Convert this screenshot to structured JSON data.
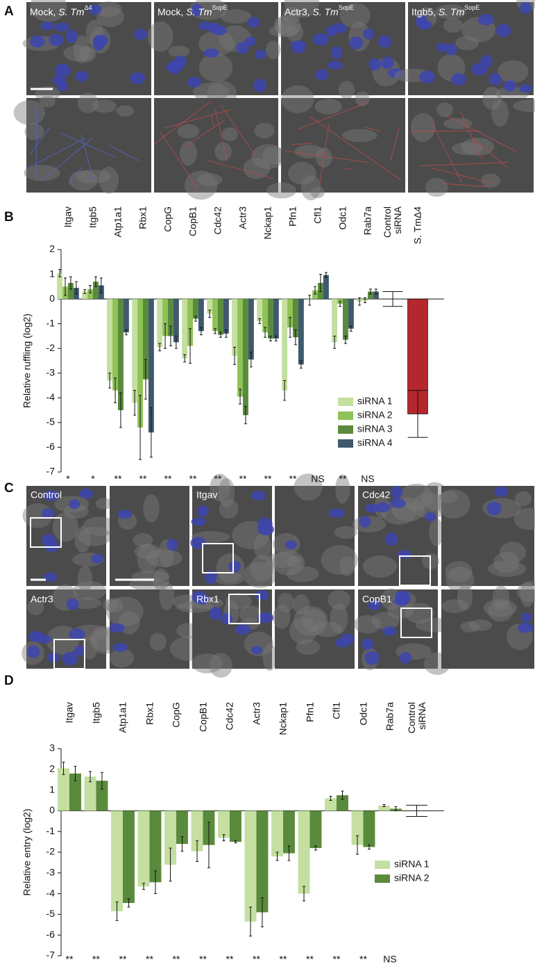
{
  "panel_letters": [
    "A",
    "B",
    "C",
    "D"
  ],
  "panel_a": {
    "labels": [
      {
        "text": "Mock, ",
        "species": "S. Tm",
        "strain": "Δ4"
      },
      {
        "text": "Mock, ",
        "species": "S. Tm",
        "strain": "SopE"
      },
      {
        "text": "Actr3, ",
        "species": "S. Tm",
        "strain": "SopE"
      },
      {
        "text": "Itgb5, ",
        "species": "S. Tm",
        "strain": "SopE"
      }
    ]
  },
  "panel_c": {
    "labels": [
      "Control",
      "Itgav",
      "Cdc42",
      "Actr3",
      "Rbx1",
      "CopB1"
    ]
  },
  "chart_data": [
    {
      "type": "bar",
      "ylabel": "Relative ruffling (log2)",
      "categories": [
        "Itgav",
        "Itgb5",
        "Atp1a1",
        "Rbx1",
        "CopG",
        "CopB1",
        "Cdc42",
        "Actr3",
        "Nckap1",
        "Pfn1",
        "Cfl1",
        "Odc1",
        "Rab7a",
        "Control siRNA",
        "S. TmΔ4"
      ],
      "series": [
        {
          "name": "siRNA 1",
          "color": "#c4dfa0",
          "values": [
            1.05,
            0.3,
            -3.3,
            -4.2,
            -1.95,
            -2.4,
            -0.6,
            -2.3,
            -0.9,
            -3.7,
            -0.05,
            -1.75,
            -0.1,
            null,
            null
          ],
          "errors": [
            0.15,
            0.08,
            0.3,
            0.5,
            0.15,
            0.15,
            0.15,
            0.35,
            0.1,
            0.4,
            0.2,
            0.25,
            0.15,
            null,
            null
          ]
        },
        {
          "name": "siRNA 2",
          "color": "#8fc257",
          "values": [
            0.5,
            0.4,
            -3.7,
            -5.2,
            -1.5,
            -1.9,
            -1.3,
            -3.95,
            -1.35,
            -1.15,
            0.35,
            -0.2,
            -0.05,
            null,
            null
          ],
          "errors": [
            0.35,
            0.15,
            0.5,
            1.3,
            0.5,
            0.7,
            0.1,
            0.3,
            0.2,
            0.4,
            0.15,
            0.1,
            0.1,
            null,
            null
          ]
        },
        {
          "name": "siRNA 3",
          "color": "#5a8a3c",
          "values": [
            0.65,
            0.7,
            -4.5,
            -3.25,
            -1.5,
            -0.8,
            -1.45,
            -4.7,
            -1.6,
            -1.55,
            0.65,
            -1.65,
            0.3,
            null,
            null
          ],
          "errors": [
            0.25,
            0.2,
            0.7,
            0.8,
            0.4,
            0.1,
            0.1,
            0.35,
            0.1,
            0.3,
            0.35,
            0.15,
            0.1,
            null,
            null
          ]
        },
        {
          "name": "siRNA 4",
          "color": "#3e5a6c",
          "values": [
            0.45,
            0.55,
            -1.35,
            -5.4,
            -1.75,
            -1.3,
            -1.4,
            -2.45,
            -1.6,
            -2.65,
            0.97,
            -1.2,
            0.3,
            null,
            null
          ],
          "errors": [
            0.25,
            0.3,
            0.1,
            1.0,
            0.25,
            0.15,
            0.15,
            0.3,
            0.1,
            0.15,
            0.1,
            0.1,
            0.1,
            null,
            null
          ]
        }
      ],
      "control_values": [
        null,
        null,
        null,
        null,
        null,
        null,
        null,
        null,
        null,
        null,
        null,
        null,
        null,
        0,
        -4.65
      ],
      "control_errors": [
        null,
        null,
        null,
        null,
        null,
        null,
        null,
        null,
        null,
        null,
        null,
        null,
        null,
        0.3,
        0.95
      ],
      "control_color": "#b3272d",
      "significance": [
        "*",
        "*",
        "**",
        "**",
        "**",
        "**",
        "**",
        "**",
        "**",
        "**",
        "NS",
        "**",
        "NS",
        null,
        null
      ],
      "ylim": [
        -7,
        2
      ],
      "yticks": [
        -7,
        -6,
        -5,
        -4,
        -3,
        -2,
        -1,
        0,
        1,
        2
      ]
    },
    {
      "type": "bar",
      "ylabel": "Relative entry (log2)",
      "categories": [
        "Itgav",
        "Itgb5",
        "Atp1a1",
        "Rbx1",
        "CopG",
        "CopB1",
        "Cdc42",
        "Actr3",
        "Nckap1",
        "Pfn1",
        "Cfl1",
        "Odc1",
        "Rab7a",
        "Control siRNA"
      ],
      "series": [
        {
          "name": "siRNA 1",
          "color": "#c4dfa0",
          "values": [
            2.05,
            1.65,
            -4.85,
            -3.65,
            -2.6,
            -1.95,
            -1.3,
            -5.35,
            -2.2,
            -4.0,
            0.6,
            -1.65,
            0.25,
            null
          ],
          "errors": [
            0.3,
            0.25,
            0.45,
            0.15,
            0.8,
            0.5,
            0.15,
            0.7,
            0.2,
            0.35,
            0.1,
            0.45,
            0.05,
            null
          ]
        },
        {
          "name": "siRNA 2",
          "color": "#5a8a3c",
          "values": [
            1.8,
            1.45,
            -4.45,
            -3.45,
            -1.6,
            -1.65,
            -1.5,
            -4.9,
            -2.05,
            -1.8,
            0.75,
            -1.75,
            0.1,
            null
          ],
          "errors": [
            0.35,
            0.4,
            0.2,
            0.55,
            0.35,
            1.1,
            0.05,
            0.7,
            0.35,
            0.1,
            0.2,
            0.1,
            0.1,
            null
          ]
        }
      ],
      "control_values": [
        null,
        null,
        null,
        null,
        null,
        null,
        null,
        null,
        null,
        null,
        null,
        null,
        null,
        0
      ],
      "control_errors": [
        null,
        null,
        null,
        null,
        null,
        null,
        null,
        null,
        null,
        null,
        null,
        null,
        null,
        0.27
      ],
      "significance": [
        "**",
        "**",
        "**",
        "**",
        "**",
        "**",
        "**",
        "**",
        "**",
        "**",
        "**",
        "**",
        "NS",
        null
      ],
      "ylim": [
        -7,
        3
      ],
      "yticks": [
        -7,
        -6,
        -5,
        -4,
        -3,
        -2,
        -1,
        0,
        1,
        2,
        3
      ]
    }
  ]
}
